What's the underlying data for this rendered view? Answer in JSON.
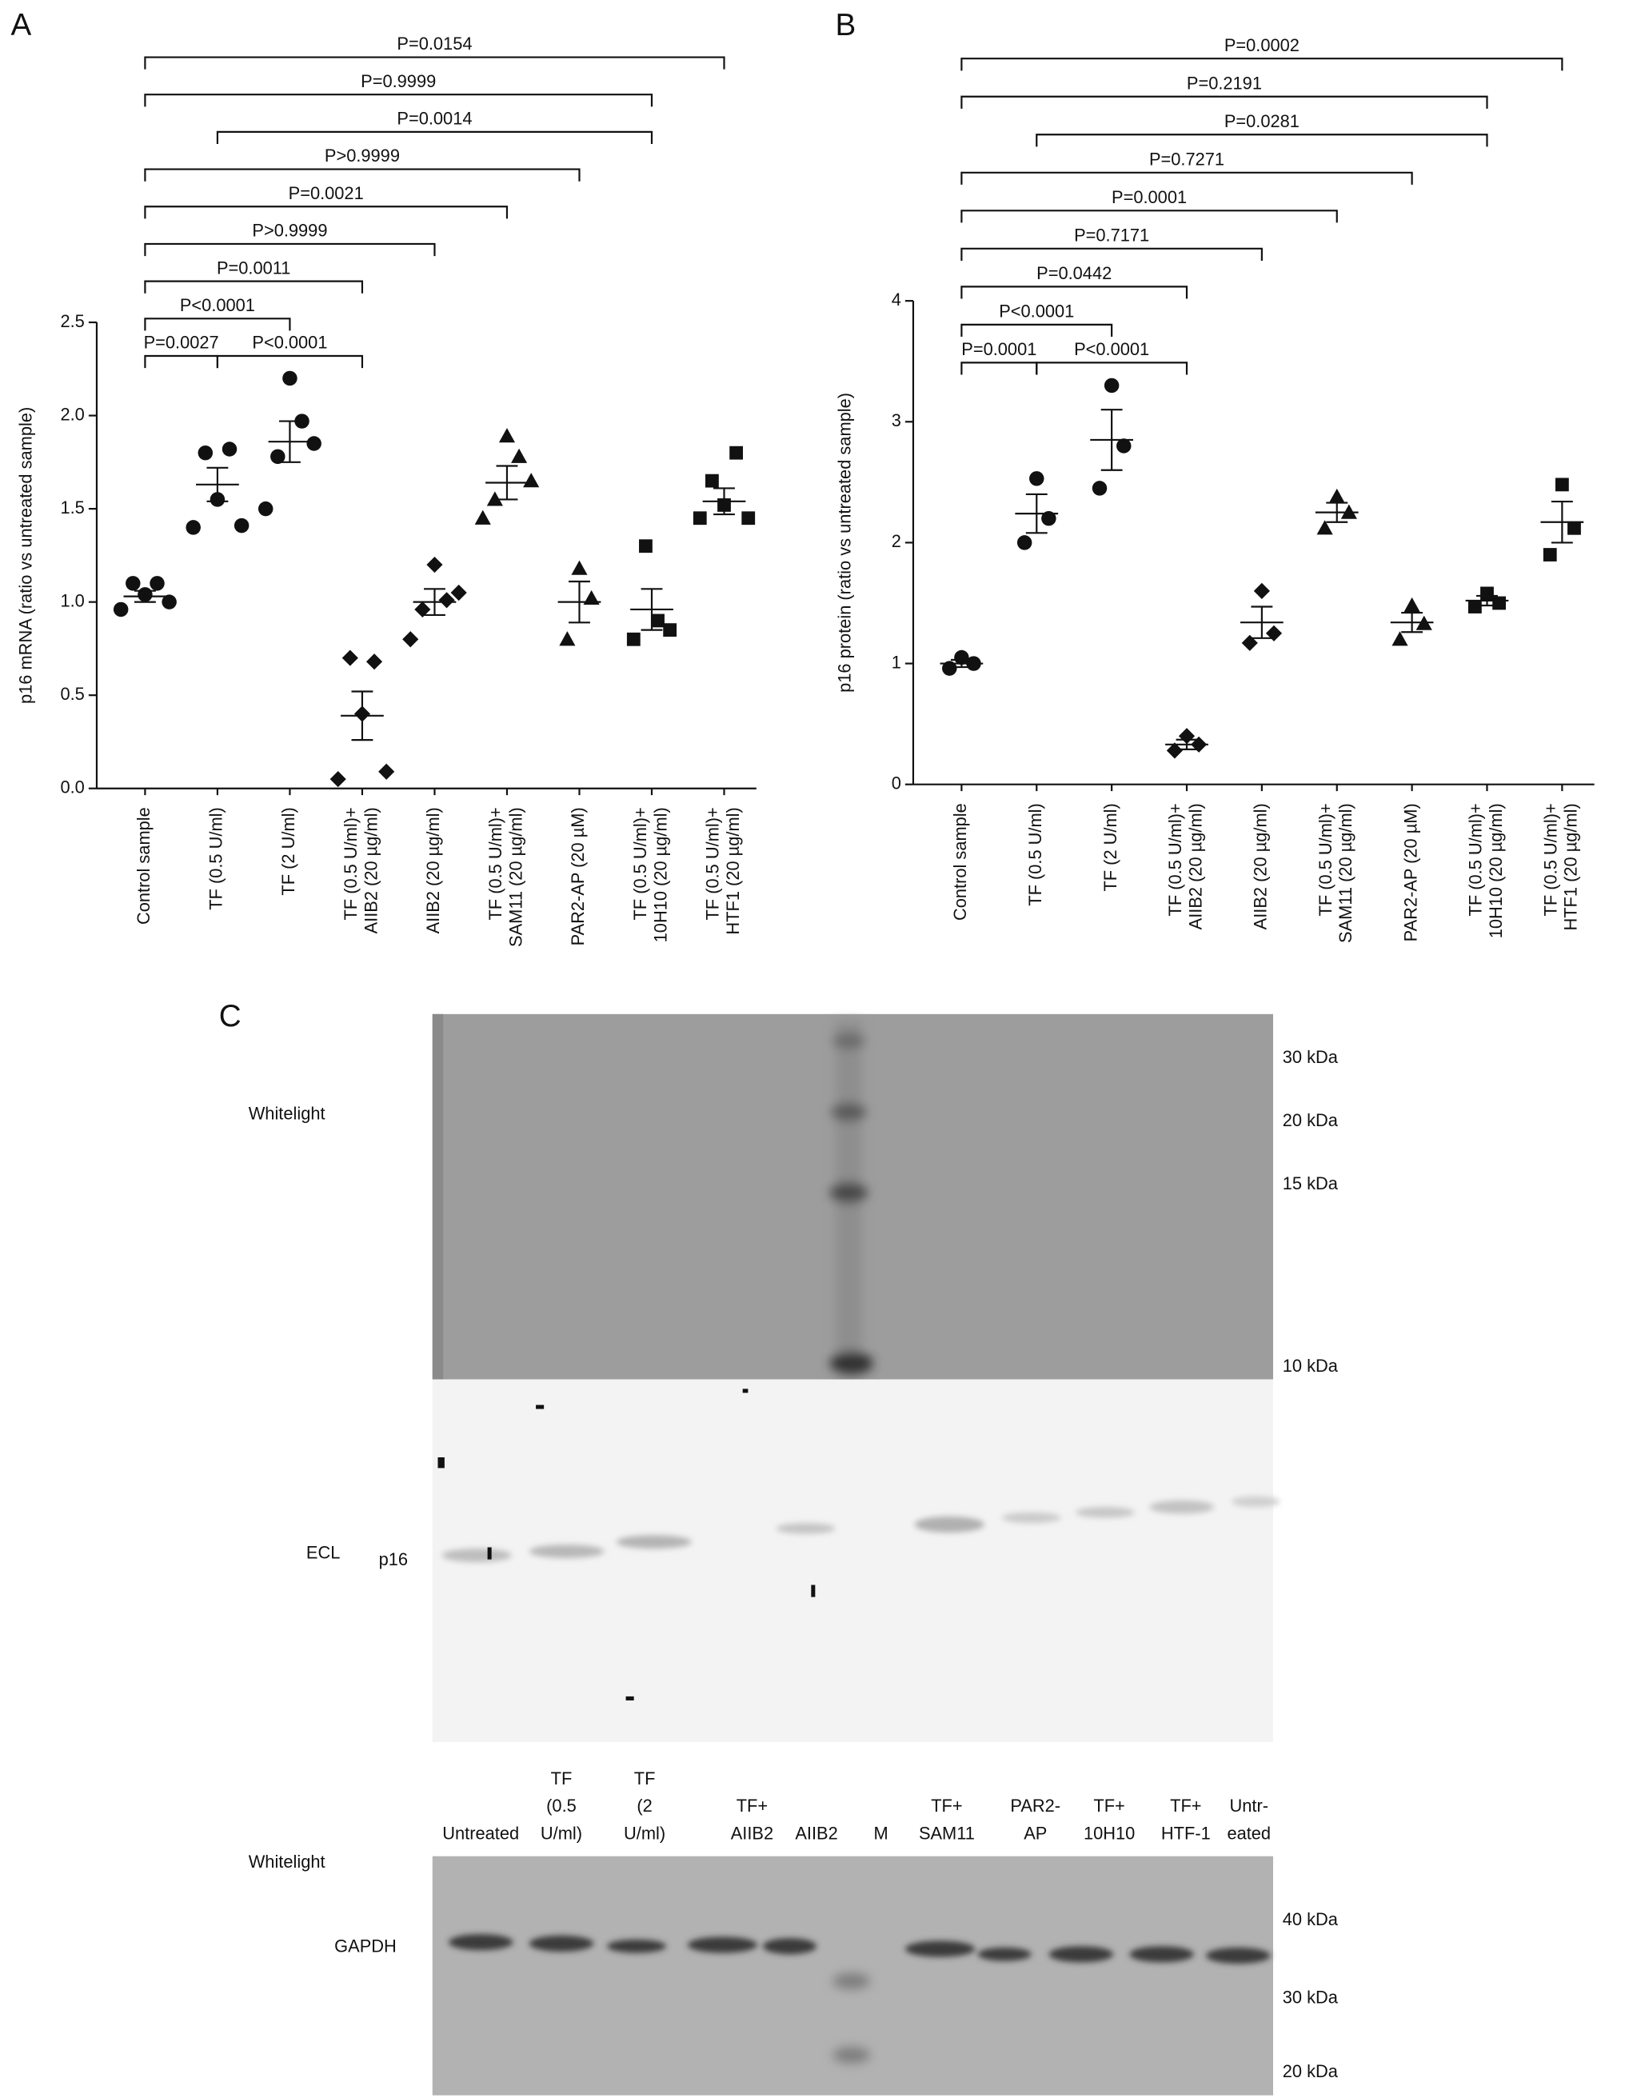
{
  "chart_data": [
    {
      "type": "dotplot",
      "panel_label": "A",
      "ylabel": "p16 mRNA (ratio vs untreated sample)",
      "categories": [
        [
          "Control sample"
        ],
        [
          "TF (0.5 U/ml)"
        ],
        [
          "TF (2 U/ml)"
        ],
        [
          "TF (0.5 U/ml)+",
          "AIIB2 (20 µg/ml)"
        ],
        [
          "AIIB2 (20 µg/ml)"
        ],
        [
          "TF (0.5 U/ml)+",
          "SAM11 (20 µg/ml)"
        ],
        [
          "PAR2-AP (20 µM)"
        ],
        [
          "TF (0.5 U/ml)+",
          "10H10 (20 µg/ml)"
        ],
        [
          "TF (0.5 U/ml)+",
          "HTF1 (20 µg/ml)"
        ]
      ],
      "markers": [
        "circle",
        "circle",
        "circle",
        "diamond",
        "diamond",
        "triangle",
        "triangle",
        "square",
        "square"
      ],
      "color": "#111111",
      "points": [
        [
          0.96,
          1.1,
          1.04,
          1.1,
          1.0
        ],
        [
          1.4,
          1.8,
          1.55,
          1.82,
          1.41
        ],
        [
          1.5,
          1.78,
          2.2,
          1.97,
          1.85
        ],
        [
          0.05,
          0.7,
          0.4,
          0.68,
          0.09
        ],
        [
          0.8,
          0.96,
          1.2,
          1.01,
          1.05
        ],
        [
          1.45,
          1.55,
          1.89,
          1.78,
          1.65
        ],
        [
          0.8,
          1.18,
          1.02
        ],
        [
          0.8,
          1.3,
          0.9,
          0.85
        ],
        [
          1.45,
          1.65,
          1.52,
          1.8,
          1.45
        ]
      ],
      "means": [
        1.03,
        1.63,
        1.86,
        0.39,
        1.0,
        1.64,
        1.0,
        0.96,
        1.54
      ],
      "errors": [
        0.03,
        0.09,
        0.11,
        0.13,
        0.07,
        0.09,
        0.11,
        0.11,
        0.07
      ],
      "ylim": [
        0,
        2.5
      ],
      "yticks": [
        {
          "value": 0,
          "label": "0.0"
        },
        0.5,
        {
          "value": 1,
          "label": "1.0"
        },
        1.5,
        {
          "value": 2,
          "label": "2.0"
        },
        2.5
      ],
      "comparisons": [
        {
          "label": "P=0.0154",
          "from": 0,
          "to": 8
        },
        {
          "label": "P=0.9999",
          "from": 0,
          "to": 7
        },
        {
          "label": "P=0.0014",
          "from": 1,
          "to": 7
        },
        {
          "label": "P>0.9999",
          "from": 0,
          "to": 6
        },
        {
          "label": "P=0.0021",
          "from": 0,
          "to": 5
        },
        {
          "label": "P>0.9999",
          "from": 0,
          "to": 4
        },
        {
          "label": "P=0.0011",
          "from": 0,
          "to": 3
        },
        {
          "label": "P<0.0001",
          "from": 0,
          "to": 2
        },
        {
          "label": "P=0.0027",
          "from": 0,
          "to": 1
        },
        {
          "label": "P<0.0001",
          "from": 1,
          "to": 3
        }
      ]
    },
    {
      "type": "dotplot",
      "panel_label": "B",
      "ylabel": "p16 protein (ratio vs untreated sample)",
      "categories": [
        [
          "Control sample"
        ],
        [
          "TF (0.5 U/ml)"
        ],
        [
          "TF (2 U/ml)"
        ],
        [
          "TF (0.5 U/ml)+",
          "AIIB2 (20 µg/ml)"
        ],
        [
          "AIIB2 (20 µg/ml)"
        ],
        [
          "TF (0.5 U/ml)+",
          "SAM11 (20 µg/ml)"
        ],
        [
          "PAR2-AP (20 µM)"
        ],
        [
          "TF (0.5 U/ml)+",
          "10H10 (20 µg/ml)"
        ],
        [
          "TF (0.5 U/ml)+",
          "HTF1 (20 µg/ml)"
        ]
      ],
      "markers": [
        "circle",
        "circle",
        "circle",
        "diamond",
        "diamond",
        "triangle",
        "triangle",
        "square",
        "square"
      ],
      "color": "#111111",
      "points": [
        [
          0.96,
          1.05,
          1.0
        ],
        [
          2.0,
          2.53,
          2.2
        ],
        [
          2.45,
          3.3,
          2.8
        ],
        [
          0.28,
          0.4,
          0.33
        ],
        [
          1.17,
          1.6,
          1.25
        ],
        [
          2.12,
          2.38,
          2.25
        ],
        [
          1.2,
          1.48,
          1.33
        ],
        [
          1.47,
          1.58,
          1.5
        ],
        [
          1.9,
          2.48,
          2.12
        ]
      ],
      "means": [
        1.0,
        2.24,
        2.85,
        0.33,
        1.34,
        2.25,
        1.34,
        1.52,
        2.17
      ],
      "errors": [
        0.03,
        0.16,
        0.25,
        0.04,
        0.13,
        0.08,
        0.08,
        0.04,
        0.17
      ],
      "ylim": [
        0,
        4
      ],
      "yticks": [
        0,
        1,
        2,
        3,
        4
      ],
      "comparisons": [
        {
          "label": "P=0.0002",
          "from": 0,
          "to": 8
        },
        {
          "label": "P=0.2191",
          "from": 0,
          "to": 7
        },
        {
          "label": "P=0.0281",
          "from": 1,
          "to": 7
        },
        {
          "label": "P=0.7271",
          "from": 0,
          "to": 6
        },
        {
          "label": "P=0.0001",
          "from": 0,
          "to": 5
        },
        {
          "label": "P=0.7171",
          "from": 0,
          "to": 4
        },
        {
          "label": "P=0.0442",
          "from": 0,
          "to": 3
        },
        {
          "label": "P<0.0001",
          "from": 0,
          "to": 2
        },
        {
          "label": "P=0.0001",
          "from": 0,
          "to": 1
        },
        {
          "label": "P<0.0001",
          "from": 1,
          "to": 3
        }
      ]
    }
  ],
  "blot": {
    "panel_label": "C",
    "top_label": "Whitelight",
    "top_markers": [
      "30 kDa",
      "20 kDa",
      "15 kDa",
      "10 kDa"
    ],
    "ecl_label": "ECL",
    "ecl_band": "p16",
    "lanes": [
      [
        "Untreated"
      ],
      [
        "TF",
        "(0.5",
        "U/ml)"
      ],
      [
        "TF",
        "(2",
        "U/ml)"
      ],
      [
        "TF+",
        "AIIB2"
      ],
      [
        "AIIB2"
      ],
      [
        "M"
      ],
      [
        "TF+",
        "SAM11"
      ],
      [
        "PAR2-",
        "AP"
      ],
      [
        "TF+",
        "10H10"
      ],
      [
        "TF+",
        "HTF-1"
      ],
      [
        "Untr-",
        "eated"
      ]
    ],
    "bottom_label": "Whitelight",
    "bottom_band": "GAPDH",
    "bottom_markers": [
      "40 kDa",
      "30 kDa",
      "20 kDa"
    ]
  }
}
